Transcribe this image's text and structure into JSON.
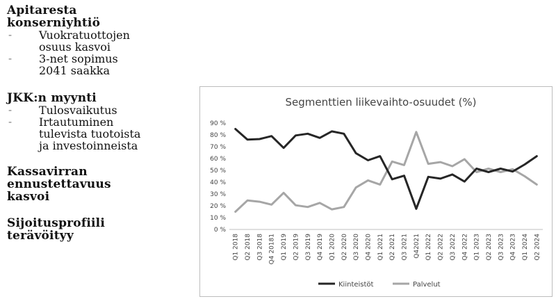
{
  "slide": {
    "sections": [
      {
        "heading": "Apitaresta\nkonserniyhtiö",
        "items": [
          "Vuokratuottojen\nosuus kasvoi",
          "3-net sopimus\n2041 saakka"
        ]
      },
      {
        "heading": "JKK:n myynti",
        "items": [
          "Tulosvaikutus",
          "Irtautuminen\ntulevista tuotoista\nja investoinneista"
        ]
      },
      {
        "heading": "Kassavirran\nennustettavuus\nkasvoi",
        "items": []
      },
      {
        "heading": "Sijoitusprofiili\nterävöityy",
        "items": []
      }
    ],
    "bullet_marker": "-"
  },
  "chart_data": {
    "type": "line",
    "title": "Segmenttien liikevaihto-osuudet (%)",
    "categories": [
      "Q1 2018",
      "Q2 2018",
      "Q3 2018",
      "Q4 20181",
      "Q1 2019",
      "Q2 2019",
      "Q3 2019",
      "Q4 2019",
      "Q1 2020",
      "Q2 2020",
      "Q3 2020",
      "Q4 2020",
      "Q1 2021",
      "Q2 2021",
      "Q3 2021",
      "Q42021",
      "Q1 2022",
      "Q2 2022",
      "Q3 2022",
      "Q4 2022",
      "Q1 2023",
      "Q2 2023",
      "Q3 2023",
      "Q4 2023",
      "Q1 2024",
      "Q2 2024"
    ],
    "series": [
      {
        "name": "Kiinteistöt",
        "color": "#262626",
        "values": [
          85,
          76,
          76.5,
          79,
          69,
          79.5,
          81,
          77.5,
          83,
          81,
          64.5,
          58.5,
          62,
          42.5,
          45.5,
          17.5,
          44.5,
          43,
          46.5,
          40.5,
          51.5,
          48.5,
          51.5,
          49,
          55,
          62
        ]
      },
      {
        "name": "Palvelut",
        "color": "#a6a6a6",
        "values": [
          15,
          24.5,
          23.5,
          21,
          31,
          20.5,
          19,
          22.5,
          17,
          19,
          35.5,
          41.5,
          38,
          57.5,
          54.5,
          82.5,
          55.5,
          57,
          53.5,
          59.5,
          48.5,
          51.5,
          48.5,
          51,
          45,
          38
        ]
      }
    ],
    "yticks": [
      "0 %",
      "10 %",
      "20 %",
      "30 %",
      "40 %",
      "50 %",
      "60 %",
      "70 %",
      "80 %",
      "90 %"
    ],
    "ylim": [
      0,
      90
    ],
    "grid": false,
    "legend_position": "bottom"
  }
}
